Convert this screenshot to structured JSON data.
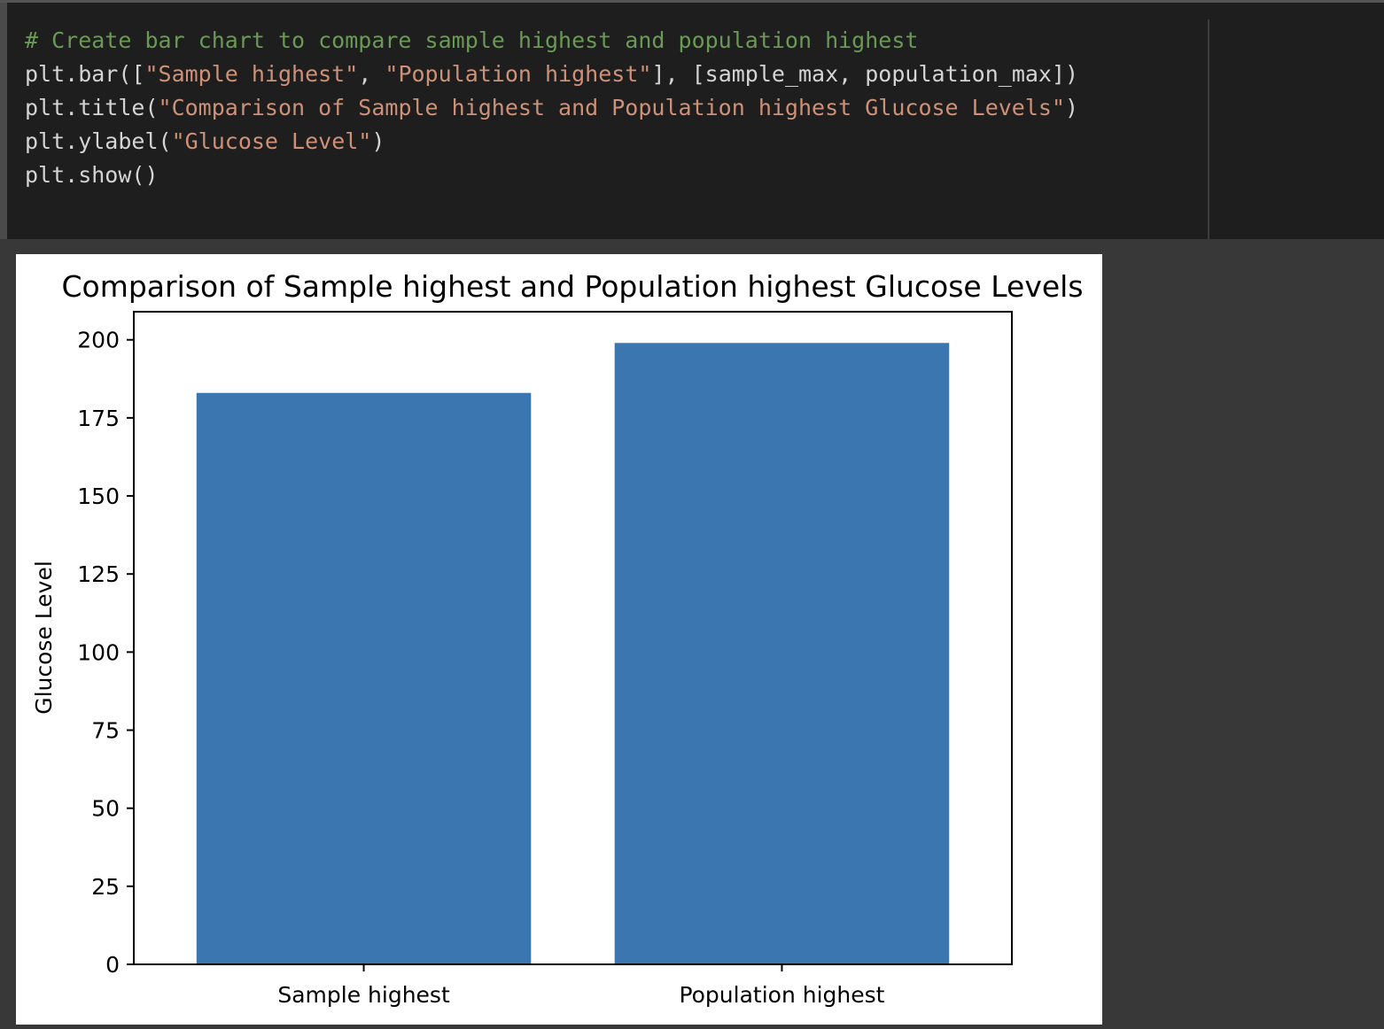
{
  "code_cell": {
    "lines": [
      [
        {
          "kind": "comment",
          "text": "# Create bar chart to compare sample highest and population highest"
        }
      ],
      [
        {
          "kind": "plain",
          "text": "plt.bar(["
        },
        {
          "kind": "string",
          "text": "\"Sample highest\""
        },
        {
          "kind": "plain",
          "text": ", "
        },
        {
          "kind": "string",
          "text": "\"Population highest\""
        },
        {
          "kind": "plain",
          "text": "], [sample_max, population_max])"
        }
      ],
      [
        {
          "kind": "plain",
          "text": "plt.title("
        },
        {
          "kind": "string",
          "text": "\"Comparison of Sample highest and Population highest Glucose Levels\""
        },
        {
          "kind": "plain",
          "text": ")"
        }
      ],
      [
        {
          "kind": "plain",
          "text": "plt.ylabel("
        },
        {
          "kind": "string",
          "text": "\"Glucose Level\""
        },
        {
          "kind": "plain",
          "text": ")"
        }
      ],
      [
        {
          "kind": "plain",
          "text": "plt.show()"
        }
      ]
    ]
  },
  "colors": {
    "comment": "#6a9955",
    "string": "#ce9178",
    "plain": "#d4d4d4",
    "bar": "#3b76b0"
  },
  "chart_data": {
    "type": "bar",
    "title": "Comparison of Sample highest and Population highest Glucose Levels",
    "xlabel": "",
    "ylabel": "Glucose Level",
    "categories": [
      "Sample highest",
      "Population highest"
    ],
    "values": [
      183,
      199
    ],
    "ylim": [
      0,
      209
    ],
    "yticks": [
      0,
      25,
      50,
      75,
      100,
      125,
      150,
      175,
      200
    ],
    "grid": false
  }
}
